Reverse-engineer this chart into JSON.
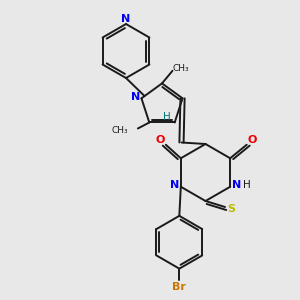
{
  "background_color": "#e8e8e8",
  "bond_color": "#1a1a1a",
  "N_color": "#0000ee",
  "O_color": "#ee0000",
  "S_color": "#bbbb00",
  "Br_color": "#cc7700",
  "H_color": "#007777",
  "figsize": [
    3.0,
    3.0
  ],
  "dpi": 100,
  "xlim": [
    0,
    10
  ],
  "ylim": [
    0,
    10
  ]
}
